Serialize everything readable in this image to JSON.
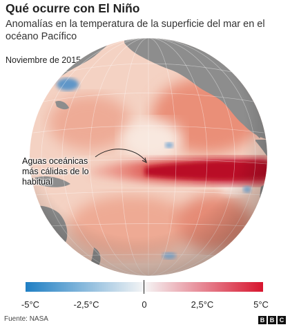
{
  "title": "Qué ocurre con El Niño",
  "subtitle": "Anomalías en la temperatura de la superficie del mar en el océano Pacífico",
  "date_label": "Noviembre de 2015",
  "annotation": {
    "line1": "Aguas oceánicas",
    "line2": "más cálidas de lo",
    "line3": "habitual"
  },
  "legend": {
    "ticks": [
      {
        "label": "-5°C",
        "value": -5
      },
      {
        "label": "-2,5°C",
        "value": -2.5
      },
      {
        "label": "0",
        "value": 0
      },
      {
        "label": "2,5°C",
        "value": 2.5
      },
      {
        "label": "5°C",
        "value": 5
      }
    ],
    "min": -5,
    "max": 5,
    "cold_color": "#1f7fc4",
    "neutral_color": "#f5f5f5",
    "warm_color": "#d7152e"
  },
  "source": "Fuente: NASA",
  "logo": {
    "letters": [
      "B",
      "B",
      "C"
    ]
  },
  "colors": {
    "land": "#8c8c8c",
    "ocean_base": "#f3d4c6",
    "anomaly_core": "#c9172a"
  }
}
